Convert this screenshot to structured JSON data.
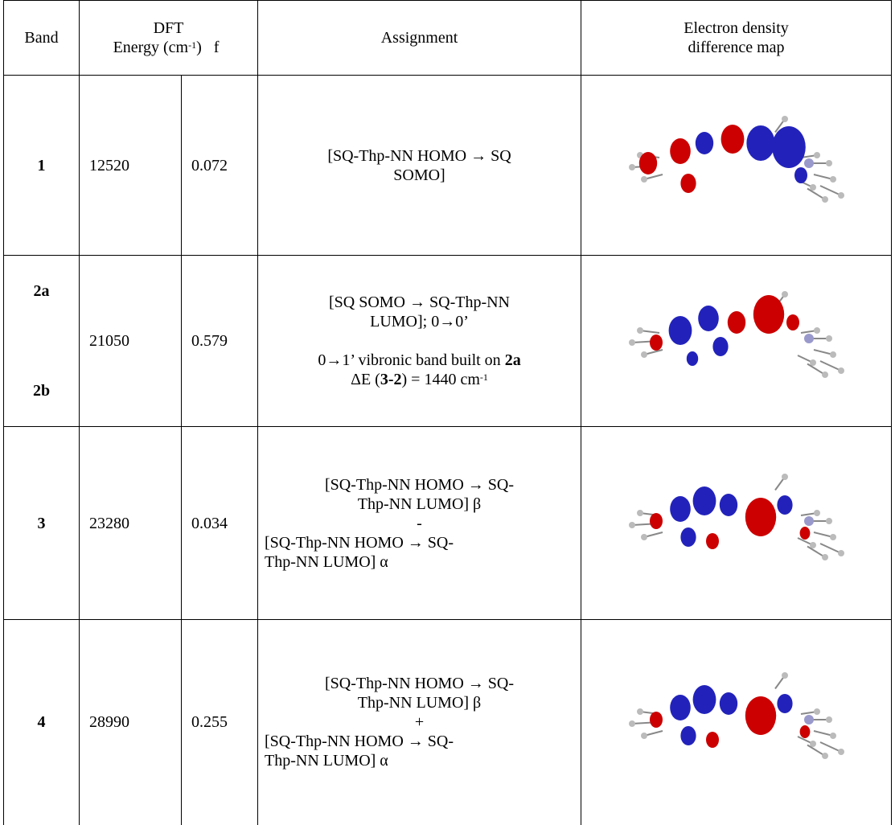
{
  "header": {
    "band": "Band",
    "dft": "DFT",
    "energy": [
      "Energy (cm",
      "-1",
      ")"
    ],
    "f": "f",
    "assignment": "Assignment",
    "map": [
      "Electron density",
      "difference map"
    ]
  },
  "rows": [
    {
      "band": "1",
      "energy": "12520",
      "f": "0.072",
      "assignment": [
        "[SQ-Thp-NN HOMO → SQ",
        "SOMO]"
      ]
    },
    {
      "band": [
        "2a",
        "2b"
      ],
      "energy": "21050",
      "f": "0.579",
      "assignment": [
        "[SQ SOMO → SQ-Thp-NN",
        "LUMO]; 0→0’",
        [
          "0→1’ vibronic band built on ",
          "2a"
        ],
        [
          "ΔE (",
          "3-2",
          ") = 1440 cm",
          "-1"
        ]
      ]
    },
    {
      "band": "3",
      "energy": "23280",
      "f": "0.034",
      "assignment": [
        "[SQ-Thp-NN HOMO → SQ-",
        "Thp-NN LUMO] β",
        "-",
        "[SQ-Thp-NN HOMO → SQ-",
        "Thp-NN LUMO] α"
      ]
    },
    {
      "band": "4",
      "energy": "28990",
      "f": "0.255",
      "assignment": [
        "[SQ-Thp-NN HOMO → SQ-",
        "Thp-NN LUMO] β",
        "+",
        "[SQ-Thp-NN HOMO → SQ-",
        "Thp-NN LUMO] α"
      ]
    }
  ]
}
